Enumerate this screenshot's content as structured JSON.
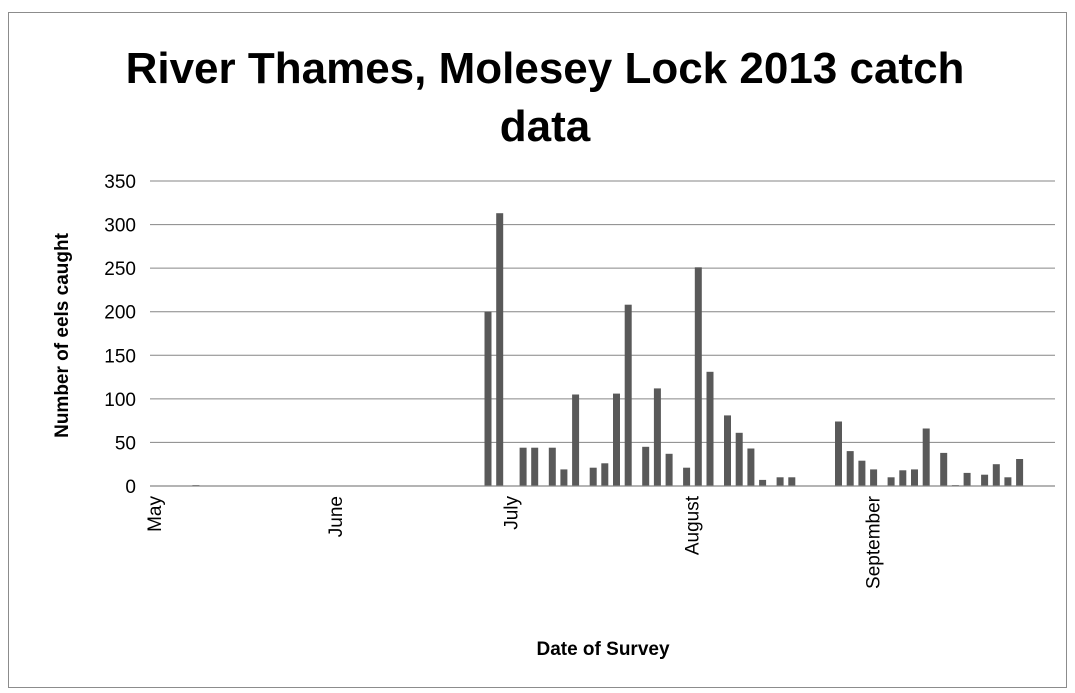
{
  "chart_data": {
    "type": "bar",
    "title": "River Thames, Molesey Lock 2013 catch data",
    "xlabel": "Date of Survey",
    "ylabel": "Number of eels caught",
    "ylim": [
      0,
      350
    ],
    "yticks": [
      0,
      50,
      100,
      150,
      200,
      250,
      300,
      350
    ],
    "grid": true,
    "legend": "none",
    "bar_color": "#595959",
    "x_range": [
      "2013-05-01",
      "2013-09-30"
    ],
    "month_ticks": [
      {
        "label": "May",
        "date": "2013-05-01"
      },
      {
        "label": "June",
        "date": "2013-06-01"
      },
      {
        "label": "July",
        "date": "2013-07-01"
      },
      {
        "label": "August",
        "date": "2013-08-01"
      },
      {
        "label": "September",
        "date": "2013-09-01"
      }
    ],
    "points": [
      {
        "date": "2013-05-08",
        "value": 1
      },
      {
        "date": "2013-06-27",
        "value": 200
      },
      {
        "date": "2013-06-29",
        "value": 313
      },
      {
        "date": "2013-07-03",
        "value": 44
      },
      {
        "date": "2013-07-05",
        "value": 44
      },
      {
        "date": "2013-07-08",
        "value": 44
      },
      {
        "date": "2013-07-10",
        "value": 19
      },
      {
        "date": "2013-07-12",
        "value": 105
      },
      {
        "date": "2013-07-15",
        "value": 21
      },
      {
        "date": "2013-07-17",
        "value": 26
      },
      {
        "date": "2013-07-19",
        "value": 106
      },
      {
        "date": "2013-07-21",
        "value": 208
      },
      {
        "date": "2013-07-24",
        "value": 45
      },
      {
        "date": "2013-07-26",
        "value": 112
      },
      {
        "date": "2013-07-28",
        "value": 37
      },
      {
        "date": "2013-07-31",
        "value": 21
      },
      {
        "date": "2013-08-02",
        "value": 251
      },
      {
        "date": "2013-08-04",
        "value": 131
      },
      {
        "date": "2013-08-07",
        "value": 81
      },
      {
        "date": "2013-08-09",
        "value": 61
      },
      {
        "date": "2013-08-11",
        "value": 43
      },
      {
        "date": "2013-08-13",
        "value": 7
      },
      {
        "date": "2013-08-16",
        "value": 10
      },
      {
        "date": "2013-08-18",
        "value": 10
      },
      {
        "date": "2013-08-26",
        "value": 74
      },
      {
        "date": "2013-08-28",
        "value": 40
      },
      {
        "date": "2013-08-30",
        "value": 29
      },
      {
        "date": "2013-09-01",
        "value": 19
      },
      {
        "date": "2013-09-04",
        "value": 10
      },
      {
        "date": "2013-09-06",
        "value": 18
      },
      {
        "date": "2013-09-08",
        "value": 19
      },
      {
        "date": "2013-09-10",
        "value": 66
      },
      {
        "date": "2013-09-13",
        "value": 38
      },
      {
        "date": "2013-09-15",
        "value": 1
      },
      {
        "date": "2013-09-17",
        "value": 15
      },
      {
        "date": "2013-09-20",
        "value": 13
      },
      {
        "date": "2013-09-22",
        "value": 25
      },
      {
        "date": "2013-09-24",
        "value": 10
      },
      {
        "date": "2013-09-26",
        "value": 31
      }
    ]
  }
}
